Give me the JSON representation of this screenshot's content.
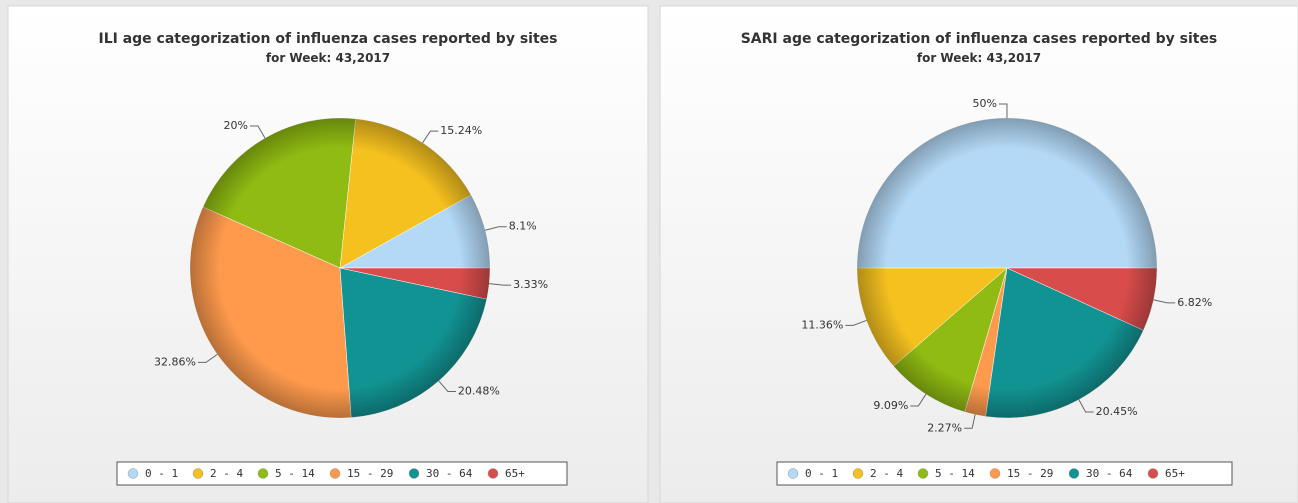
{
  "chart_data": [
    {
      "type": "pie",
      "title": "ILI age categorization of influenza cases reported by sites",
      "subtitle": "for Week: 43,2017",
      "categories": [
        "0 - 1",
        "2 - 4",
        "5 - 14",
        "15 - 29",
        "30 - 64",
        "65+"
      ],
      "values": [
        8.1,
        15.24,
        20,
        32.86,
        20.48,
        3.33
      ],
      "value_labels": [
        "8.1%",
        "15.24%",
        "20%",
        "32.86%",
        "20.48%",
        "3.33%"
      ],
      "colors": [
        "#b3d9f7",
        "#f5c11f",
        "#90bb12",
        "#ff9a4d",
        "#129393",
        "#d94c4c"
      ],
      "legend": "bottom"
    },
    {
      "type": "pie",
      "title": "SARI age categorization of influenza cases reported by sites",
      "subtitle": "for Week: 43,2017",
      "categories": [
        "0 - 1",
        "2 - 4",
        "5 - 14",
        "15 - 29",
        "30 - 64",
        "65+"
      ],
      "values": [
        50,
        11.36,
        9.09,
        2.27,
        20.45,
        6.82
      ],
      "value_labels": [
        "50%",
        "11.36%",
        "9.09%",
        "2.27%",
        "20.45%",
        "6.82%"
      ],
      "colors": [
        "#b3d9f7",
        "#f5c11f",
        "#90bb12",
        "#ff9a4d",
        "#129393",
        "#d94c4c"
      ],
      "legend": "bottom"
    }
  ]
}
